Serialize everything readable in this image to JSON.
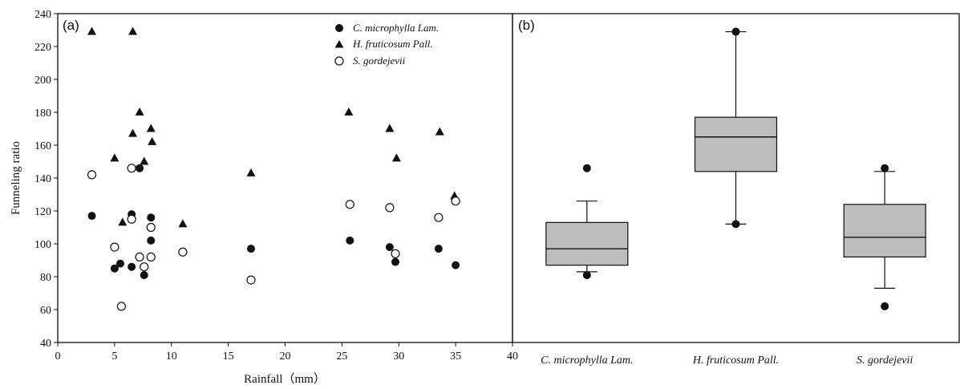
{
  "colors": {
    "axis": "#111111",
    "box_fill": "#bdbdbd",
    "marker": "#111111",
    "background": "#ffffff"
  },
  "chart_data": [
    {
      "type": "scatter",
      "panel_label": "(a)",
      "xlabel": "Rainfall（mm）",
      "ylabel": "Funneling ratio",
      "xlim": [
        0,
        40
      ],
      "ylim": [
        40,
        240
      ],
      "xticks": [
        0,
        5,
        10,
        15,
        20,
        25,
        30,
        35,
        40
      ],
      "yticks": [
        40,
        60,
        80,
        100,
        120,
        140,
        160,
        180,
        200,
        220,
        240
      ],
      "grid": false,
      "legend_position": "top-right",
      "series": [
        {
          "name": "C. microphylla Lam.",
          "marker": "filled-circle",
          "points": [
            [
              3,
              117
            ],
            [
              5,
              85
            ],
            [
              5.5,
              88
            ],
            [
              6.5,
              86
            ],
            [
              6.5,
              118
            ],
            [
              7.2,
              146
            ],
            [
              7.6,
              81
            ],
            [
              8.2,
              102
            ],
            [
              8.2,
              116
            ],
            [
              11,
              95
            ],
            [
              17,
              97
            ],
            [
              25.7,
              102
            ],
            [
              29.2,
              98
            ],
            [
              29.7,
              89
            ],
            [
              33.5,
              97
            ],
            [
              35,
              87
            ]
          ]
        },
        {
          "name": "H. fruticosum Pall.",
          "marker": "filled-triangle",
          "points": [
            [
              3,
              229
            ],
            [
              5,
              152
            ],
            [
              5.7,
              113
            ],
            [
              6.6,
              229
            ],
            [
              6.6,
              167
            ],
            [
              7.2,
              180
            ],
            [
              7.6,
              150
            ],
            [
              8.2,
              170
            ],
            [
              8.3,
              162
            ],
            [
              11,
              112
            ],
            [
              17,
              143
            ],
            [
              25.6,
              180
            ],
            [
              29.2,
              170
            ],
            [
              29.8,
              152
            ],
            [
              33.6,
              168
            ],
            [
              34.9,
              129
            ]
          ]
        },
        {
          "name": "S. gordejevii",
          "marker": "open-circle",
          "points": [
            [
              3,
              142
            ],
            [
              5,
              98
            ],
            [
              5.6,
              62
            ],
            [
              6.5,
              146
            ],
            [
              6.5,
              115
            ],
            [
              7.2,
              92
            ],
            [
              7.6,
              86
            ],
            [
              8.2,
              110
            ],
            [
              8.2,
              92
            ],
            [
              11,
              95
            ],
            [
              17,
              78
            ],
            [
              25.7,
              124
            ],
            [
              29.2,
              122
            ],
            [
              29.7,
              94
            ],
            [
              33.5,
              116
            ],
            [
              35,
              126
            ]
          ]
        }
      ]
    },
    {
      "type": "box",
      "panel_label": "(b)",
      "ylim": [
        40,
        240
      ],
      "categories": [
        "C. microphylla Lam.",
        "H. fruticosum Pall.",
        "S. gordejevii"
      ],
      "boxes": [
        {
          "category": "C. microphylla Lam.",
          "whisker_low": 83,
          "q1": 87,
          "median": 97,
          "q3": 113,
          "whisker_high": 126,
          "outliers": [
            146,
            81
          ]
        },
        {
          "category": "H. fruticosum Pall.",
          "whisker_low": 112,
          "q1": 144,
          "median": 165,
          "q3": 177,
          "whisker_high": 229,
          "outliers": [
            229,
            112
          ]
        },
        {
          "category": "S. gordejevii",
          "whisker_low": 73,
          "q1": 92,
          "median": 104,
          "q3": 124,
          "whisker_high": 144,
          "outliers": [
            146,
            62
          ]
        }
      ]
    }
  ]
}
